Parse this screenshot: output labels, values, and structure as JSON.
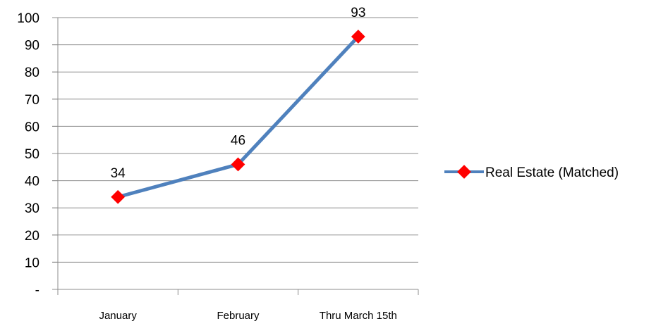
{
  "chart_data": {
    "type": "line",
    "categories": [
      "January",
      "February",
      "Thru March 15th"
    ],
    "series": [
      {
        "name": "Real Estate (Matched)",
        "values": [
          34,
          46,
          93
        ]
      }
    ],
    "y_tick_labels": [
      "-",
      "10",
      "20",
      "30",
      "40",
      "50",
      "60",
      "70",
      "80",
      "90",
      "100"
    ],
    "ylim": [
      0,
      100
    ],
    "grid": "horizontal",
    "legend": "right",
    "line_color": "#4F81BD",
    "marker_color": "#FF0000"
  }
}
